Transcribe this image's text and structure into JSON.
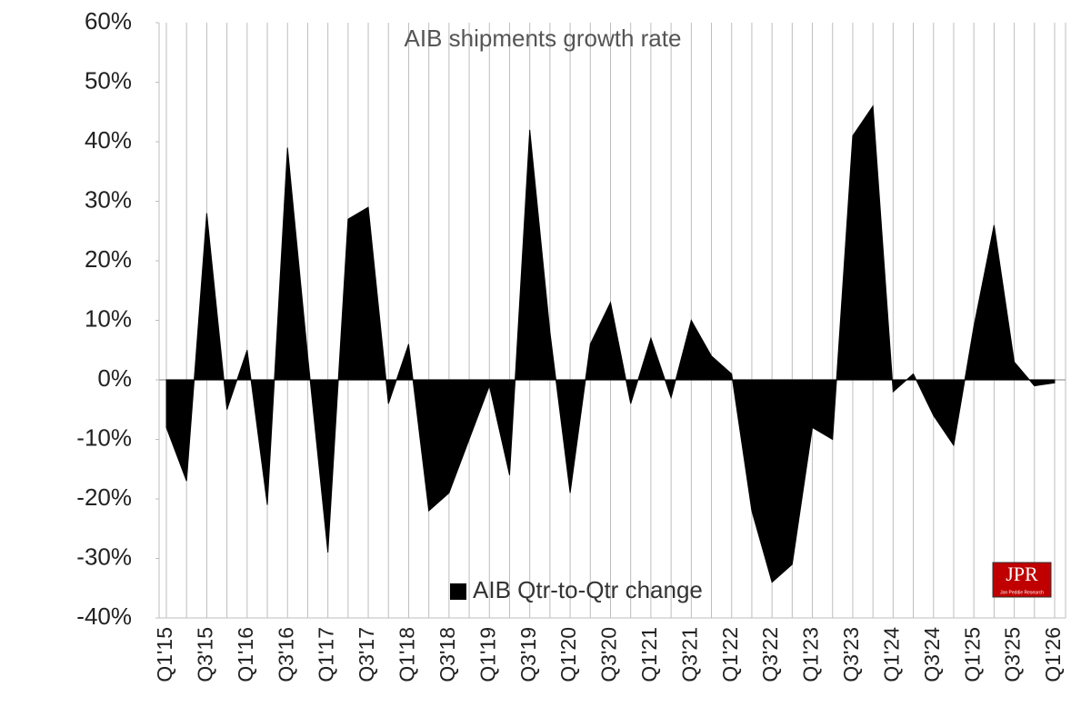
{
  "chart_data": {
    "type": "area",
    "title": "AIB shipments growth rate",
    "categories": [
      "Q1'15",
      null,
      "Q3'15",
      null,
      "Q1'16",
      null,
      "Q3'16",
      null,
      "Q1'17",
      null,
      "Q3'17",
      null,
      "Q1'18",
      null,
      "Q3'18",
      null,
      "Q1'19",
      null,
      "Q3'19",
      null,
      "Q1'20",
      null,
      "Q3'20",
      null,
      "Q1'21",
      null,
      "Q3'21",
      null,
      "Q1'22",
      null,
      "Q3'22",
      null,
      "Q1'23",
      null,
      "Q3'23",
      null,
      "Q1'24",
      null,
      "Q3'24",
      null,
      "Q1'25",
      null,
      "Q3'25",
      null,
      "Q1'26"
    ],
    "series": [
      {
        "name": "AIB Qtr-to-Qtr change",
        "color": "#000000",
        "values": [
          -8,
          -17,
          28,
          -5,
          5,
          -21,
          39,
          4,
          -29,
          27,
          29,
          -4,
          6,
          -22,
          -19,
          -10,
          -1,
          -16,
          42,
          8,
          -19,
          6,
          13,
          -4,
          7,
          -3,
          10,
          4,
          1,
          -22,
          -34,
          -31,
          -8,
          -10,
          41,
          46,
          -2,
          1,
          -6,
          -11,
          9,
          26,
          3,
          -1,
          -0.5
        ]
      }
    ],
    "ylim": [
      -40,
      60
    ],
    "yticks": [
      {
        "value": -40,
        "label": "-40%"
      },
      {
        "value": -30,
        "label": "-30%"
      },
      {
        "value": -20,
        "label": "-20%"
      },
      {
        "value": -10,
        "label": "-10%"
      },
      {
        "value": 0,
        "label": "0%"
      },
      {
        "value": 10,
        "label": "10%"
      },
      {
        "value": 20,
        "label": "20%"
      },
      {
        "value": 30,
        "label": "30%"
      },
      {
        "value": 40,
        "label": "40%"
      },
      {
        "value": 50,
        "label": "50%"
      },
      {
        "value": 60,
        "label": "60%"
      }
    ],
    "grid": "vertical",
    "legend": "bottom",
    "logo": {
      "text": "JPR",
      "subtitle": "Jon Peddie Research"
    }
  }
}
